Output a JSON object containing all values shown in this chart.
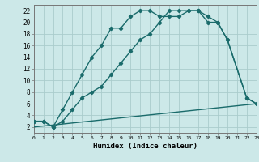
{
  "title": "",
  "xlabel": "Humidex (Indice chaleur)",
  "bg_color": "#cce8e8",
  "grid_color": "#aacccc",
  "line_color": "#1a6b6b",
  "xlim": [
    0,
    23
  ],
  "ylim": [
    1,
    23
  ],
  "xticks": [
    0,
    1,
    2,
    3,
    4,
    5,
    6,
    7,
    8,
    9,
    10,
    11,
    12,
    13,
    14,
    15,
    16,
    17,
    18,
    19,
    20,
    21,
    22,
    23
  ],
  "yticks": [
    2,
    4,
    6,
    8,
    10,
    12,
    14,
    16,
    18,
    20,
    22
  ],
  "series1_x": [
    0,
    1,
    2,
    3,
    4,
    5,
    6,
    7,
    8,
    9,
    10,
    11,
    12,
    13,
    14,
    15,
    16,
    17,
    18,
    19,
    20,
    22,
    23
  ],
  "series1_y": [
    3,
    3,
    2,
    5,
    8,
    11,
    14,
    16,
    19,
    19,
    21,
    22,
    22,
    21,
    21,
    21,
    22,
    22,
    20,
    20,
    17,
    7,
    6
  ],
  "series2_x": [
    0,
    1,
    2,
    3,
    4,
    5,
    6,
    7,
    8,
    9,
    10,
    11,
    12,
    13,
    14,
    15,
    16,
    17,
    18,
    19,
    20,
    22,
    23
  ],
  "series2_y": [
    3,
    3,
    2,
    3,
    5,
    7,
    8,
    9,
    11,
    13,
    15,
    17,
    18,
    20,
    22,
    22,
    22,
    22,
    21,
    20,
    17,
    7,
    6
  ],
  "series3_x": [
    0,
    23
  ],
  "series3_y": [
    2,
    6
  ],
  "marker": "D",
  "markersize": 2.2,
  "linewidth": 1.0
}
